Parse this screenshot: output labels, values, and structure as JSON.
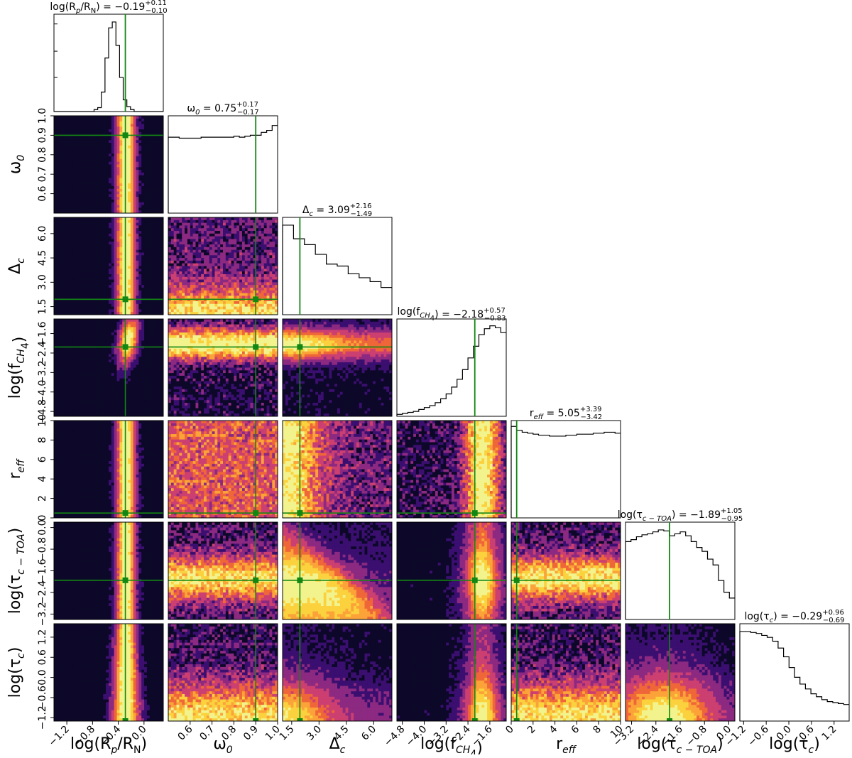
{
  "chart_data": {
    "type": "corner",
    "parameters": [
      {
        "key": "logRpRN",
        "label": "log(R",
        "sub": "p",
        "mid": "/R",
        "sub2": "N",
        "tail": ")",
        "median": "−0.19",
        "plus": "+0.11",
        "minus": "−0.10",
        "title_prefix": "log(R",
        "title_sub": "p",
        "title_mid": "/R",
        "title_sub2": "N",
        "title_tail": ") = ",
        "range": [
          -1.4,
          0.3
        ],
        "truth": -0.29,
        "ticks": [
          "−1.2",
          "−0.8",
          "−0.4",
          "0.0"
        ],
        "tick_values": [
          -1.2,
          -0.8,
          -0.4,
          0.0
        ],
        "hist": [
          0,
          0,
          0,
          0,
          0,
          0,
          0,
          0,
          0,
          0,
          0,
          0.02,
          0.04,
          0.2,
          0.55,
          0.86,
          0.92,
          0.68,
          0.35,
          0.12,
          0.05,
          0.02,
          0,
          0,
          0,
          0,
          0,
          0,
          0,
          0
        ]
      },
      {
        "key": "omega0",
        "label": "ω",
        "sub": "0",
        "mid": "",
        "sub2": "",
        "tail": "",
        "median": "0.75",
        "plus": "+0.17",
        "minus": "−0.17",
        "title_prefix": "ω",
        "title_sub": "0",
        "title_mid": "",
        "title_sub2": "",
        "title_tail": " = ",
        "range": [
          0.5,
          1.0
        ],
        "truth": 0.9,
        "ticks": [
          "0.6",
          "0.7",
          "0.8",
          "0.9",
          "1.0"
        ],
        "tick_values": [
          0.6,
          0.7,
          0.8,
          0.9,
          1.0
        ],
        "hist": [
          0.78,
          0.78,
          0.77,
          0.77,
          0.77,
          0.77,
          0.78,
          0.78,
          0.78,
          0.78,
          0.78,
          0.78,
          0.79,
          0.78,
          0.79,
          0.8,
          0.8,
          0.83,
          0.85,
          0.9
        ]
      },
      {
        "key": "deltac",
        "label": "Δ",
        "sub": "c",
        "mid": "",
        "sub2": "",
        "tail": "",
        "median": "3.09",
        "plus": "+2.16",
        "minus": "−1.49",
        "title_prefix": "Δ",
        "title_sub": "c",
        "title_mid": "",
        "title_sub2": "",
        "title_tail": " = ",
        "range": [
          1.0,
          7.0
        ],
        "truth": 1.95,
        "ticks": [
          "1.5",
          "3.0",
          "4.5",
          "6.0"
        ],
        "tick_values": [
          1.5,
          3.0,
          4.5,
          6.0
        ],
        "hist": [
          0.92,
          0.92,
          0.78,
          0.78,
          0.72,
          0.72,
          0.62,
          0.62,
          0.52,
          0.52,
          0.5,
          0.5,
          0.42,
          0.42,
          0.38,
          0.38,
          0.34,
          0.34,
          0.28,
          0.28
        ]
      },
      {
        "key": "logfCH4",
        "label": "log(f",
        "sub": "CH",
        "sub2": "4",
        "mid": "",
        "tail": ")",
        "median": "−2.18",
        "plus": "+0.57",
        "minus": "−0.83",
        "title_prefix": "log(f",
        "title_sub": "CH",
        "title_mid": "",
        "title_sub2": "4",
        "title_tail": ") = ",
        "range": [
          -5.0,
          -1.0
        ],
        "truth": -2.15,
        "ticks": [
          "−4.8",
          "−4.0",
          "−3.2",
          "−2.4",
          "−1.6"
        ],
        "tick_values": [
          -4.8,
          -4.0,
          -3.2,
          -2.4,
          -1.6
        ],
        "hist": [
          0.02,
          0.03,
          0.04,
          0.05,
          0.07,
          0.09,
          0.11,
          0.14,
          0.18,
          0.23,
          0.3,
          0.38,
          0.48,
          0.6,
          0.72,
          0.84,
          0.9,
          0.93,
          0.91,
          0.86
        ]
      },
      {
        "key": "reff",
        "label": "r",
        "sub": "eff",
        "mid": "",
        "sub2": "",
        "tail": "",
        "median": "5.05",
        "plus": "+3.39",
        "minus": "−3.42",
        "title_prefix": "r",
        "title_sub": "eff",
        "title_mid": "",
        "title_sub2": "",
        "title_tail": " = ",
        "range": [
          0.0,
          10.0
        ],
        "truth": 0.5,
        "ticks": [
          "0",
          "2",
          "4",
          "6",
          "8",
          "10"
        ],
        "tick_values": [
          0,
          2,
          4,
          6,
          8,
          10
        ],
        "hist": [
          0.94,
          0.9,
          0.88,
          0.87,
          0.86,
          0.85,
          0.85,
          0.84,
          0.84,
          0.84,
          0.85,
          0.85,
          0.86,
          0.86,
          0.86,
          0.87,
          0.87,
          0.88,
          0.88,
          0.87
        ]
      },
      {
        "key": "logtaucTOA",
        "label": "log(τ",
        "sub": "c − TOA",
        "mid": "",
        "sub2": "",
        "tail": ")",
        "median": "−1.89",
        "plus": "+1.05",
        "minus": "−0.95",
        "title_prefix": "log(τ",
        "title_sub": "c − TOA",
        "title_mid": "",
        "title_sub2": "",
        "title_tail": ") = ",
        "range": [
          -3.4,
          0.2
        ],
        "truth": -1.95,
        "ticks": [
          "−3.2",
          "−2.4",
          "−1.6",
          "−0.8",
          "0.0"
        ],
        "tick_values": [
          -3.2,
          -2.4,
          -1.6,
          -0.8,
          0.0
        ],
        "hist": [
          0.8,
          0.82,
          0.85,
          0.87,
          0.88,
          0.9,
          0.92,
          0.91,
          0.86,
          0.88,
          0.9,
          0.86,
          0.8,
          0.74,
          0.7,
          0.62,
          0.56,
          0.4,
          0.28,
          0.22
        ]
      },
      {
        "key": "logtauc",
        "label": "log(τ",
        "sub": "c",
        "mid": "",
        "sub2": "",
        "tail": ")",
        "median": "−0.29",
        "plus": "+0.96",
        "minus": "−0.69",
        "title_prefix": "log(τ",
        "title_sub": "c",
        "title_mid": "",
        "title_sub2": "",
        "title_tail": ") = ",
        "range": [
          -1.3,
          1.6
        ],
        "truth": null,
        "ticks": [
          "−1.2",
          "−0.6",
          "0.0",
          "0.6",
          "1.2"
        ],
        "tick_values": [
          -1.2,
          -0.6,
          0.0,
          0.6,
          1.2
        ],
        "hist": [
          0.92,
          0.92,
          0.91,
          0.9,
          0.88,
          0.86,
          0.82,
          0.75,
          0.66,
          0.55,
          0.45,
          0.38,
          0.33,
          0.28,
          0.25,
          0.22,
          0.2,
          0.19,
          0.18,
          0.17
        ]
      }
    ],
    "colormap": [
      "#0d0829",
      "#3b0f70",
      "#8c2981",
      "#cc3f71",
      "#ef6638",
      "#fba338",
      "#fbd23e",
      "#f3f38e"
    ],
    "truth_color": "#128712",
    "hist_color": "#000000"
  }
}
